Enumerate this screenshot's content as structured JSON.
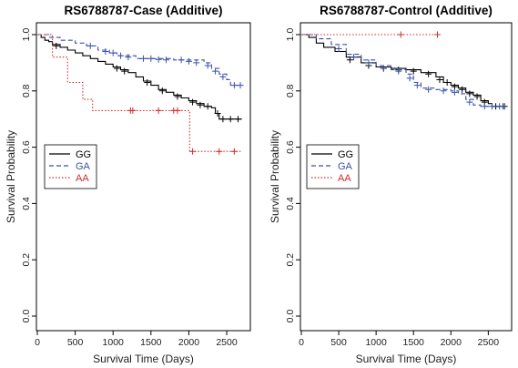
{
  "chart_data": [
    {
      "type": "line",
      "title": "RS6788787-Case (Additive)",
      "xlabel": "Survival Time (Days)",
      "ylabel": "Survival Probability",
      "xlim": [
        0,
        2800
      ],
      "ylim": [
        0,
        1.0
      ],
      "xticks": [
        "0",
        "500",
        "1000",
        "1500",
        "2000",
        "2500"
      ],
      "yticks": [
        "0.0",
        "0.2",
        "0.4",
        "0.6",
        "0.8",
        "1.0"
      ],
      "grid": false,
      "legend": "middle-left",
      "series": [
        {
          "name": "GG",
          "color": "#000000",
          "dash": "solid",
          "points": [
            [
              0,
              1.0
            ],
            [
              50,
              0.99
            ],
            [
              100,
              0.98
            ],
            [
              150,
              0.975
            ],
            [
              200,
              0.965
            ],
            [
              300,
              0.955
            ],
            [
              400,
              0.945
            ],
            [
              500,
              0.935
            ],
            [
              600,
              0.925
            ],
            [
              700,
              0.915
            ],
            [
              800,
              0.905
            ],
            [
              900,
              0.895
            ],
            [
              1000,
              0.885
            ],
            [
              1100,
              0.875
            ],
            [
              1200,
              0.865
            ],
            [
              1300,
              0.85
            ],
            [
              1400,
              0.835
            ],
            [
              1500,
              0.82
            ],
            [
              1600,
              0.805
            ],
            [
              1700,
              0.795
            ],
            [
              1800,
              0.785
            ],
            [
              1900,
              0.775
            ],
            [
              2000,
              0.765
            ],
            [
              2100,
              0.755
            ],
            [
              2200,
              0.745
            ],
            [
              2300,
              0.74
            ],
            [
              2350,
              0.72
            ],
            [
              2400,
              0.7
            ],
            [
              2700,
              0.7
            ]
          ],
          "censored": [
            [
              250,
              0.96
            ],
            [
              1050,
              0.88
            ],
            [
              1150,
              0.87
            ],
            [
              1450,
              0.83
            ],
            [
              1650,
              0.8
            ],
            [
              1850,
              0.78
            ],
            [
              2050,
              0.76
            ],
            [
              2150,
              0.75
            ],
            [
              2250,
              0.745
            ],
            [
              2380,
              0.72
            ],
            [
              2450,
              0.7
            ],
            [
              2550,
              0.7
            ],
            [
              2650,
              0.7
            ]
          ]
        },
        {
          "name": "GA",
          "color": "#3a52a8",
          "dash": "dashed",
          "points": [
            [
              0,
              1.0
            ],
            [
              150,
              0.99
            ],
            [
              300,
              0.98
            ],
            [
              500,
              0.97
            ],
            [
              650,
              0.96
            ],
            [
              800,
              0.945
            ],
            [
              950,
              0.935
            ],
            [
              1050,
              0.925
            ],
            [
              1300,
              0.915
            ],
            [
              1800,
              0.91
            ],
            [
              2200,
              0.9
            ],
            [
              2300,
              0.88
            ],
            [
              2400,
              0.86
            ],
            [
              2500,
              0.84
            ],
            [
              2550,
              0.82
            ],
            [
              2700,
              0.82
            ]
          ],
          "censored": [
            [
              700,
              0.96
            ],
            [
              900,
              0.94
            ],
            [
              1000,
              0.935
            ],
            [
              1100,
              0.925
            ],
            [
              1200,
              0.92
            ],
            [
              1400,
              0.915
            ],
            [
              1500,
              0.915
            ],
            [
              1600,
              0.912
            ],
            [
              1700,
              0.91
            ],
            [
              1900,
              0.91
            ],
            [
              2000,
              0.905
            ],
            [
              2100,
              0.9
            ],
            [
              2250,
              0.89
            ],
            [
              2350,
              0.87
            ],
            [
              2450,
              0.85
            ],
            [
              2600,
              0.82
            ],
            [
              2680,
              0.82
            ]
          ]
        },
        {
          "name": "AA",
          "color": "#d42a2a",
          "dash": "dotted",
          "points": [
            [
              0,
              1.0
            ],
            [
              150,
              1.0
            ],
            [
              200,
              0.92
            ],
            [
              350,
              0.92
            ],
            [
              400,
              0.83
            ],
            [
              550,
              0.83
            ],
            [
              600,
              0.77
            ],
            [
              720,
              0.77
            ],
            [
              730,
              0.73
            ],
            [
              1900,
              0.73
            ],
            [
              2000,
              0.73
            ],
            [
              2010,
              0.585
            ],
            [
              2700,
              0.585
            ]
          ],
          "censored": [
            [
              1230,
              0.73
            ],
            [
              1260,
              0.73
            ],
            [
              1600,
              0.73
            ],
            [
              1800,
              0.73
            ],
            [
              1850,
              0.73
            ],
            [
              2050,
              0.585
            ],
            [
              2400,
              0.585
            ],
            [
              2600,
              0.585
            ]
          ]
        }
      ]
    },
    {
      "type": "line",
      "title": "RS6788787-Control (Additive)",
      "xlabel": "Survival Time (Days)",
      "ylabel": "Survival Probability",
      "xlim": [
        0,
        2800
      ],
      "ylim": [
        0,
        1.0
      ],
      "xticks": [
        "0",
        "500",
        "1000",
        "1500",
        "2000",
        "2500"
      ],
      "yticks": [
        "0.0",
        "0.2",
        "0.4",
        "0.6",
        "0.8",
        "1.0"
      ],
      "grid": false,
      "legend": "middle-left",
      "series": [
        {
          "name": "GG",
          "color": "#000000",
          "dash": "solid",
          "points": [
            [
              0,
              1.0
            ],
            [
              100,
              0.99
            ],
            [
              200,
              0.97
            ],
            [
              300,
              0.955
            ],
            [
              450,
              0.94
            ],
            [
              600,
              0.92
            ],
            [
              800,
              0.9
            ],
            [
              1000,
              0.885
            ],
            [
              1200,
              0.88
            ],
            [
              1400,
              0.875
            ],
            [
              1600,
              0.865
            ],
            [
              1800,
              0.85
            ],
            [
              1900,
              0.83
            ],
            [
              2000,
              0.82
            ],
            [
              2100,
              0.81
            ],
            [
              2200,
              0.795
            ],
            [
              2300,
              0.785
            ],
            [
              2400,
              0.765
            ],
            [
              2500,
              0.755
            ],
            [
              2550,
              0.745
            ],
            [
              2750,
              0.745
            ]
          ],
          "censored": [
            [
              650,
              0.91
            ],
            [
              900,
              0.89
            ],
            [
              1100,
              0.88
            ],
            [
              1300,
              0.875
            ],
            [
              1500,
              0.87
            ],
            [
              1700,
              0.86
            ],
            [
              1850,
              0.84
            ],
            [
              1950,
              0.83
            ],
            [
              2050,
              0.815
            ],
            [
              2150,
              0.805
            ],
            [
              2250,
              0.79
            ],
            [
              2350,
              0.78
            ],
            [
              2450,
              0.76
            ],
            [
              2600,
              0.745
            ],
            [
              2700,
              0.745
            ]
          ]
        },
        {
          "name": "GA",
          "color": "#3a52a8",
          "dash": "dashed",
          "points": [
            [
              0,
              1.0
            ],
            [
              200,
              0.985
            ],
            [
              400,
              0.965
            ],
            [
              600,
              0.93
            ],
            [
              800,
              0.91
            ],
            [
              1000,
              0.89
            ],
            [
              1200,
              0.875
            ],
            [
              1400,
              0.86
            ],
            [
              1500,
              0.83
            ],
            [
              1600,
              0.81
            ],
            [
              1800,
              0.805
            ],
            [
              2000,
              0.8
            ],
            [
              2100,
              0.79
            ],
            [
              2200,
              0.77
            ],
            [
              2300,
              0.75
            ],
            [
              2400,
              0.745
            ],
            [
              2750,
              0.745
            ]
          ],
          "censored": [
            [
              500,
              0.95
            ],
            [
              700,
              0.92
            ],
            [
              900,
              0.9
            ],
            [
              1100,
              0.88
            ],
            [
              1300,
              0.87
            ],
            [
              1450,
              0.845
            ],
            [
              1550,
              0.82
            ],
            [
              1700,
              0.805
            ],
            [
              1900,
              0.8
            ],
            [
              2050,
              0.795
            ],
            [
              2250,
              0.76
            ],
            [
              2450,
              0.745
            ],
            [
              2550,
              0.745
            ],
            [
              2650,
              0.745
            ],
            [
              2720,
              0.745
            ]
          ]
        },
        {
          "name": "AA",
          "color": "#d42a2a",
          "dash": "dotted",
          "points": [
            [
              0,
              1.0
            ],
            [
              1850,
              1.0
            ]
          ],
          "censored": [
            [
              1330,
              1.0
            ],
            [
              1820,
              1.0
            ]
          ]
        }
      ]
    }
  ]
}
